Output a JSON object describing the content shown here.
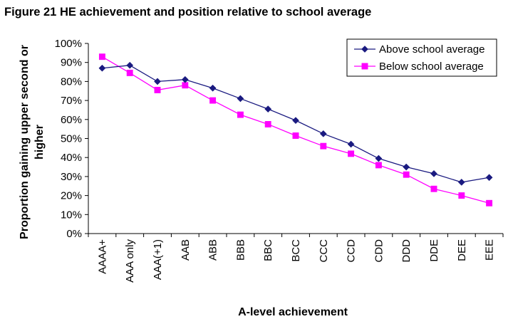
{
  "chart_data": {
    "type": "line",
    "title": "Figure 21 HE achievement and position relative to school average",
    "xlabel": "A-level achievement",
    "ylabel": "Proportion gaining upper second or higher",
    "categories": [
      "AAAA+",
      "AAA only",
      "AAA(+1)",
      "AAB",
      "ABB",
      "BBB",
      "BBC",
      "BCC",
      "CCC",
      "CCD",
      "CDD",
      "DDD",
      "DDE",
      "DEE",
      "EEE"
    ],
    "ylim": [
      0,
      1
    ],
    "yticks": [
      "0%",
      "10%",
      "20%",
      "30%",
      "40%",
      "50%",
      "60%",
      "70%",
      "80%",
      "90%",
      "100%"
    ],
    "grid": false,
    "legend_position": "top-right",
    "series": [
      {
        "name": "Above school average",
        "color": "#1a1a80",
        "marker": "diamond",
        "values": [
          0.87,
          0.885,
          0.8,
          0.81,
          0.765,
          0.71,
          0.655,
          0.595,
          0.525,
          0.47,
          0.395,
          0.35,
          0.315,
          0.27,
          0.295
        ]
      },
      {
        "name": "Below school average",
        "color": "#ff00ff",
        "marker": "square",
        "values": [
          0.93,
          0.845,
          0.755,
          0.78,
          0.7,
          0.625,
          0.575,
          0.515,
          0.46,
          0.42,
          0.36,
          0.31,
          0.235,
          0.2,
          0.16
        ]
      }
    ]
  }
}
